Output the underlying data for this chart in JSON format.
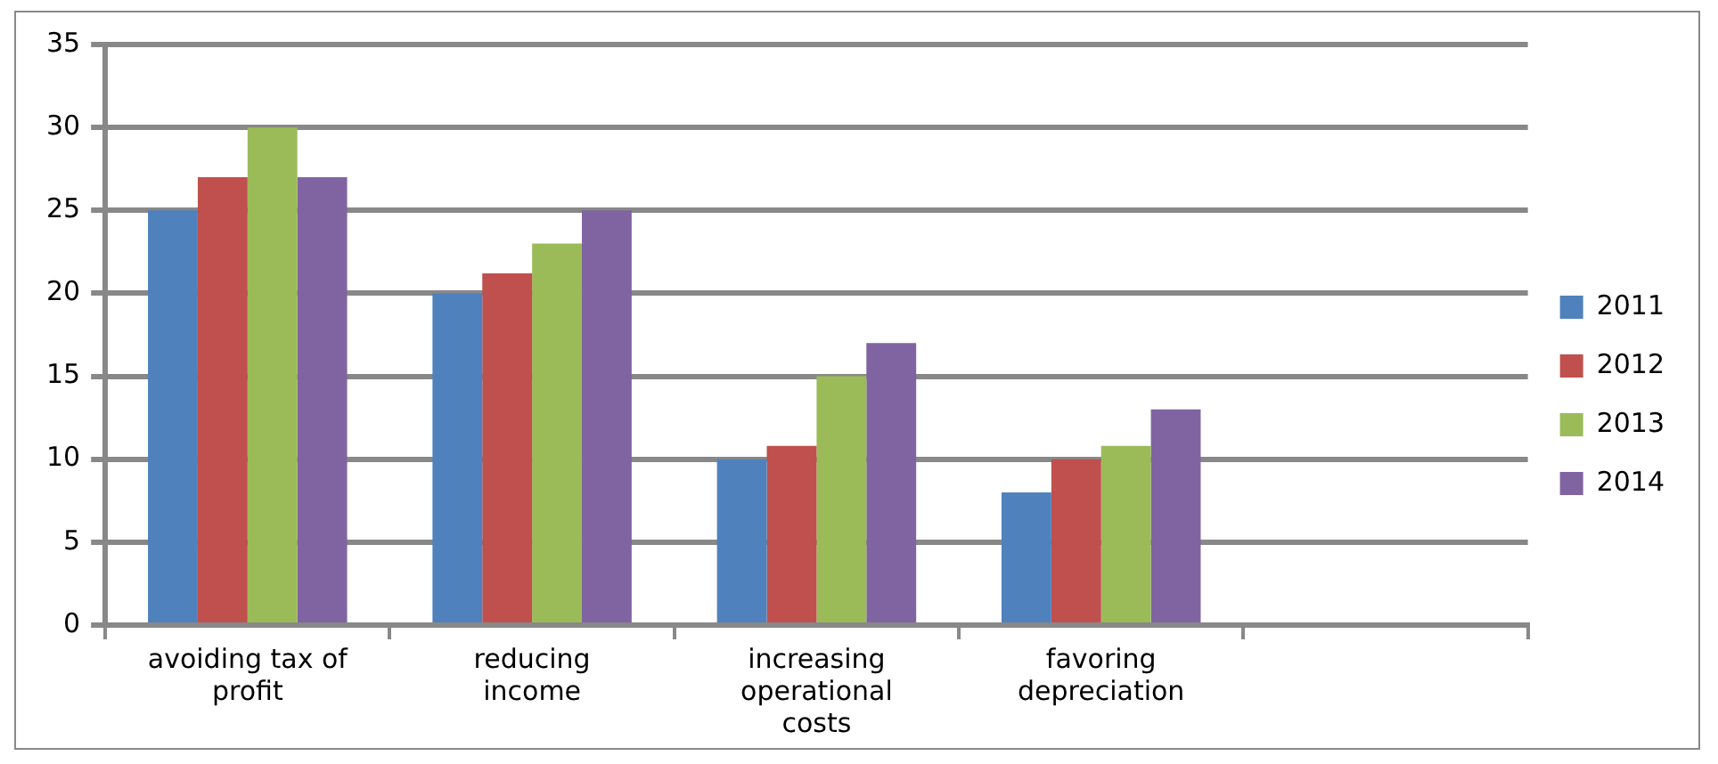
{
  "chart_data": {
    "type": "bar",
    "categories": [
      "avoiding tax of\nprofit",
      "reducing\nincome",
      "increasing\noperational\ncosts",
      "favoring\ndepreciation",
      null
    ],
    "series": [
      {
        "name": "2011",
        "color": "#4f81bd",
        "values": [
          25,
          20,
          10,
          8,
          null
        ]
      },
      {
        "name": "2012",
        "color": "#c0504d",
        "values": [
          27,
          21.2,
          10.8,
          10,
          null
        ]
      },
      {
        "name": "2013",
        "color": "#9bbb59",
        "values": [
          30,
          23,
          15,
          10.8,
          null
        ]
      },
      {
        "name": "2014",
        "color": "#8064a2",
        "values": [
          27,
          25,
          17,
          13,
          null
        ]
      }
    ],
    "ylim": [
      0,
      35
    ],
    "yticks": [
      0,
      5,
      10,
      15,
      20,
      25,
      30,
      35
    ],
    "grid": "y",
    "legend": "right"
  }
}
